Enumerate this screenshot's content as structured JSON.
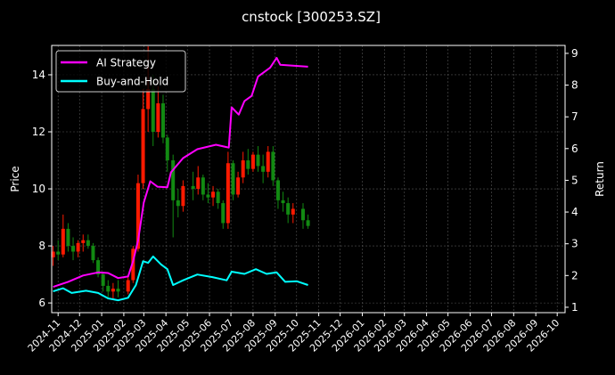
{
  "chart_data": {
    "type": "candlestick+line",
    "title": "cnstock [300253.SZ]",
    "ylabel_left": "Price",
    "ylabel_right": "Return",
    "xlim": [
      "2024-10-23",
      "2026-10-12"
    ],
    "ylim_left": [
      5.66,
      15.03
    ],
    "ylim_right": [
      0.83,
      9.25
    ],
    "x_ticks": [
      "2024-11",
      "2024-12",
      "2025-01",
      "2025-02",
      "2025-03",
      "2025-04",
      "2025-05",
      "2025-06",
      "2025-07",
      "2025-08",
      "2025-09",
      "2025-10",
      "2025-11",
      "2025-12",
      "2026-01",
      "2026-02",
      "2026-03",
      "2026-04",
      "2026-05",
      "2026-06",
      "2026-07",
      "2026-08",
      "2026-09",
      "2026-10"
    ],
    "y_ticks_left": [
      6,
      8,
      10,
      12,
      14
    ],
    "y_ticks_right": [
      1,
      2,
      3,
      4,
      5,
      6,
      7,
      8,
      9
    ],
    "grid": true,
    "legend_placement": "upper-left",
    "colors": {
      "up": "#ff1a00",
      "down": "#128a12",
      "ai": "#ff00ff",
      "bh": "#00ffff",
      "grid": "#555555"
    },
    "candles": {
      "columns": [
        "date",
        "open",
        "high",
        "low",
        "close"
      ],
      "rows": [
        [
          "2024-10-25",
          7.6,
          8.0,
          7.3,
          7.8
        ],
        [
          "2024-11-01",
          7.8,
          8.2,
          7.5,
          7.7
        ],
        [
          "2024-11-08",
          7.7,
          9.1,
          7.6,
          8.6
        ],
        [
          "2024-11-15",
          8.6,
          8.8,
          7.8,
          8.0
        ],
        [
          "2024-11-22",
          8.0,
          8.3,
          7.5,
          7.8
        ],
        [
          "2024-11-29",
          7.8,
          8.2,
          7.6,
          8.1
        ],
        [
          "2024-12-06",
          8.1,
          8.4,
          7.8,
          8.2
        ],
        [
          "2024-12-13",
          8.2,
          8.4,
          7.9,
          8.0
        ],
        [
          "2024-12-20",
          8.0,
          8.1,
          7.4,
          7.5
        ],
        [
          "2024-12-27",
          7.5,
          7.6,
          6.9,
          7.0
        ],
        [
          "2025-01-03",
          7.0,
          7.1,
          6.4,
          6.6
        ],
        [
          "2025-01-10",
          6.6,
          6.8,
          6.2,
          6.4
        ],
        [
          "2025-01-17",
          6.4,
          6.7,
          6.1,
          6.5
        ],
        [
          "2025-01-24",
          6.5,
          6.8,
          6.2,
          6.4
        ],
        [
          "2025-02-07",
          6.4,
          6.9,
          6.3,
          6.8
        ],
        [
          "2025-02-14",
          6.8,
          8.0,
          6.7,
          7.9
        ],
        [
          "2025-02-21",
          7.9,
          10.5,
          7.8,
          10.2
        ],
        [
          "2025-02-28",
          10.2,
          13.5,
          10.0,
          12.8
        ],
        [
          "2025-03-07",
          12.8,
          15.0,
          12.0,
          13.5
        ],
        [
          "2025-03-14",
          13.5,
          14.0,
          11.5,
          12.0
        ],
        [
          "2025-03-21",
          12.0,
          13.6,
          11.8,
          13.0
        ],
        [
          "2025-03-28",
          13.0,
          13.3,
          11.6,
          11.8
        ],
        [
          "2025-04-03",
          11.8,
          11.9,
          10.6,
          11.0
        ],
        [
          "2025-04-11",
          11.0,
          11.2,
          8.3,
          9.6
        ],
        [
          "2025-04-18",
          9.6,
          10.0,
          9.0,
          9.4
        ],
        [
          "2025-04-25",
          9.4,
          10.3,
          9.2,
          10.1
        ],
        [
          "2025-05-09",
          10.1,
          10.6,
          9.6,
          10.0
        ],
        [
          "2025-05-16",
          10.0,
          10.8,
          9.8,
          10.4
        ],
        [
          "2025-05-23",
          10.4,
          10.5,
          9.6,
          9.8
        ],
        [
          "2025-05-30",
          9.8,
          10.2,
          9.5,
          9.7
        ],
        [
          "2025-06-06",
          9.7,
          10.1,
          9.4,
          9.9
        ],
        [
          "2025-06-13",
          9.9,
          10.0,
          9.3,
          9.5
        ],
        [
          "2025-06-20",
          9.5,
          9.6,
          8.6,
          8.8
        ],
        [
          "2025-06-27",
          8.8,
          11.3,
          8.6,
          10.9
        ],
        [
          "2025-07-04",
          10.9,
          11.0,
          9.6,
          9.8
        ],
        [
          "2025-07-11",
          9.8,
          10.6,
          9.7,
          10.4
        ],
        [
          "2025-07-18",
          10.4,
          11.3,
          10.2,
          11.0
        ],
        [
          "2025-07-25",
          11.0,
          11.4,
          10.5,
          10.7
        ],
        [
          "2025-08-01",
          10.7,
          11.3,
          10.6,
          11.2
        ],
        [
          "2025-08-08",
          11.2,
          11.5,
          10.6,
          10.8
        ],
        [
          "2025-08-15",
          10.8,
          11.2,
          10.2,
          10.6
        ],
        [
          "2025-08-22",
          10.6,
          11.5,
          10.4,
          11.3
        ],
        [
          "2025-08-29",
          11.3,
          11.5,
          10.1,
          10.3
        ],
        [
          "2025-09-05",
          10.3,
          10.4,
          9.3,
          9.6
        ],
        [
          "2025-09-12",
          9.6,
          9.9,
          9.2,
          9.5
        ],
        [
          "2025-09-19",
          9.5,
          9.7,
          8.8,
          9.1
        ],
        [
          "2025-09-26",
          9.1,
          9.5,
          8.8,
          9.3
        ],
        [
          "2025-10-10",
          9.3,
          9.5,
          8.6,
          8.9
        ],
        [
          "2025-10-17",
          8.9,
          9.1,
          8.6,
          8.7
        ]
      ]
    },
    "series": [
      {
        "name": "AI Strategy",
        "axis": "right",
        "points": [
          [
            "2024-10-25",
            1.64
          ],
          [
            "2024-11-15",
            1.8
          ],
          [
            "2024-12-06",
            2.0
          ],
          [
            "2024-12-27",
            2.1
          ],
          [
            "2025-01-10",
            2.08
          ],
          [
            "2025-01-24",
            1.92
          ],
          [
            "2025-02-07",
            1.97
          ],
          [
            "2025-02-14",
            2.45
          ],
          [
            "2025-02-21",
            3.1
          ],
          [
            "2025-03-01",
            4.3
          ],
          [
            "2025-03-10",
            4.97
          ],
          [
            "2025-03-20",
            4.8
          ],
          [
            "2025-04-03",
            4.78
          ],
          [
            "2025-04-08",
            5.25
          ],
          [
            "2025-04-25",
            5.7
          ],
          [
            "2025-05-15",
            5.98
          ],
          [
            "2025-06-10",
            6.12
          ],
          [
            "2025-06-28",
            6.03
          ],
          [
            "2025-07-02",
            7.3
          ],
          [
            "2025-07-12",
            7.07
          ],
          [
            "2025-07-20",
            7.5
          ],
          [
            "2025-07-30",
            7.66
          ],
          [
            "2025-08-08",
            8.27
          ],
          [
            "2025-08-25",
            8.55
          ],
          [
            "2025-09-03",
            8.86
          ],
          [
            "2025-09-08",
            8.64
          ],
          [
            "2025-10-17",
            8.58
          ]
        ]
      },
      {
        "name": "Buy-and-Hold",
        "axis": "right",
        "points": [
          [
            "2024-10-25",
            1.5
          ],
          [
            "2024-11-08",
            1.6
          ],
          [
            "2024-11-20",
            1.45
          ],
          [
            "2024-12-10",
            1.52
          ],
          [
            "2024-12-27",
            1.45
          ],
          [
            "2025-01-10",
            1.28
          ],
          [
            "2025-01-24",
            1.22
          ],
          [
            "2025-02-07",
            1.3
          ],
          [
            "2025-02-18",
            1.7
          ],
          [
            "2025-02-28",
            2.45
          ],
          [
            "2025-03-07",
            2.4
          ],
          [
            "2025-03-14",
            2.6
          ],
          [
            "2025-03-25",
            2.35
          ],
          [
            "2025-04-03",
            2.2
          ],
          [
            "2025-04-11",
            1.7
          ],
          [
            "2025-04-25",
            1.85
          ],
          [
            "2025-05-15",
            2.03
          ],
          [
            "2025-06-05",
            1.95
          ],
          [
            "2025-06-25",
            1.85
          ],
          [
            "2025-07-02",
            2.12
          ],
          [
            "2025-07-20",
            2.05
          ],
          [
            "2025-08-05",
            2.2
          ],
          [
            "2025-08-20",
            2.05
          ],
          [
            "2025-09-03",
            2.1
          ],
          [
            "2025-09-15",
            1.8
          ],
          [
            "2025-10-01",
            1.82
          ],
          [
            "2025-10-17",
            1.7
          ]
        ]
      }
    ]
  }
}
